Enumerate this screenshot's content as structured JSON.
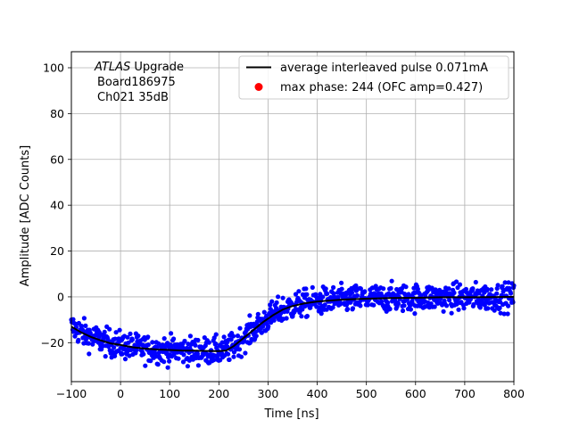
{
  "chart_data": {
    "type": "scatter",
    "xlabel": "Time [ns]",
    "ylabel": "Amplitude [ADC Counts]",
    "xlim": [
      -100,
      800
    ],
    "ylim": [
      -37,
      107
    ],
    "xticks": [
      -100,
      0,
      100,
      200,
      300,
      400,
      500,
      600,
      700,
      800
    ],
    "yticks": [
      -20,
      0,
      20,
      40,
      60,
      80,
      100
    ],
    "grid": true,
    "legend_position": "top-right",
    "annotation": {
      "line1_italic": "ATLAS",
      "line1_rest": " Upgrade",
      "line2": "Board186975",
      "line3": "Ch021 35dB"
    },
    "series": [
      {
        "name": "average interleaved pulse 0.071mA",
        "kind": "line",
        "color": "#000000",
        "x": [
          -100,
          -80,
          -60,
          -40,
          -20,
          0,
          25,
          50,
          75,
          100,
          125,
          150,
          175,
          200,
          215,
          230,
          250,
          270,
          290,
          310,
          330,
          350,
          375,
          400,
          450,
          500,
          550,
          600,
          650,
          700,
          750,
          800
        ],
        "y": [
          -13,
          -15.5,
          -17.5,
          -19,
          -20.3,
          -21,
          -22,
          -22.6,
          -23,
          -23.2,
          -23.4,
          -23.5,
          -23.6,
          -23.7,
          -23.4,
          -21.5,
          -18,
          -14.5,
          -11,
          -8,
          -5.5,
          -4,
          -2.8,
          -2,
          -1.2,
          -0.8,
          -0.5,
          -0.4,
          -0.2,
          -0.2,
          -0.1,
          0
        ]
      },
      {
        "name": "max phase: 244 (OFC amp=0.427)",
        "kind": "scatter",
        "color": "#0000ff",
        "legend_color": "#ff0000",
        "spread": 3
      }
    ]
  }
}
